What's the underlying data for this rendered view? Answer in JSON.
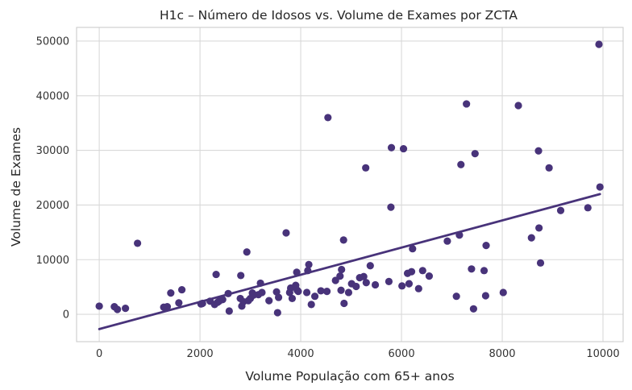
{
  "chart_data": {
    "type": "scatter",
    "title": "H1c – Número de Idosos vs. Volume de Exames por ZCTA",
    "xlabel": "Volume População com 65+ anos",
    "ylabel": "Volume de Exames",
    "xlim": [
      -450,
      10400
    ],
    "ylim": [
      -5000,
      52500
    ],
    "xticks": [
      0,
      2000,
      4000,
      6000,
      8000,
      10000
    ],
    "yticks": [
      0,
      10000,
      20000,
      30000,
      40000,
      50000
    ],
    "xtick_labels": [
      "0",
      "2000",
      "4000",
      "6000",
      "8000",
      "10000"
    ],
    "ytick_labels": [
      "0",
      "10000",
      "20000",
      "30000",
      "40000",
      "50000"
    ],
    "grid": true,
    "colors": {
      "points": "#48337a",
      "line": "#48337a",
      "grid": "#d9d9d9",
      "frame": "#cccccc"
    },
    "trendline": {
      "x": [
        0,
        9940
      ],
      "y": [
        -2700,
        22000
      ]
    },
    "points": [
      [
        0,
        1500
      ],
      [
        300,
        1400
      ],
      [
        360,
        900
      ],
      [
        520,
        1100
      ],
      [
        760,
        13000
      ],
      [
        1280,
        1300
      ],
      [
        1350,
        1400
      ],
      [
        1420,
        3900
      ],
      [
        1580,
        2100
      ],
      [
        1640,
        4500
      ],
      [
        2020,
        1900
      ],
      [
        2050,
        2000
      ],
      [
        2200,
        2400
      ],
      [
        2290,
        1800
      ],
      [
        2320,
        7300
      ],
      [
        2350,
        2200
      ],
      [
        2380,
        2400
      ],
      [
        2450,
        2700
      ],
      [
        2560,
        3800
      ],
      [
        2580,
        600
      ],
      [
        2800,
        2900
      ],
      [
        2810,
        7100
      ],
      [
        2830,
        1500
      ],
      [
        2860,
        2300
      ],
      [
        2930,
        11400
      ],
      [
        2960,
        2500
      ],
      [
        3000,
        2900
      ],
      [
        3040,
        3900
      ],
      [
        3060,
        3500
      ],
      [
        3160,
        3600
      ],
      [
        3200,
        5700
      ],
      [
        3230,
        4000
      ],
      [
        3370,
        2500
      ],
      [
        3520,
        4100
      ],
      [
        3540,
        300
      ],
      [
        3560,
        3100
      ],
      [
        3710,
        14900
      ],
      [
        3780,
        4000
      ],
      [
        3800,
        4800
      ],
      [
        3830,
        2900
      ],
      [
        3900,
        5300
      ],
      [
        3920,
        7700
      ],
      [
        3930,
        4400
      ],
      [
        3950,
        4200
      ],
      [
        4120,
        4000
      ],
      [
        4140,
        8000
      ],
      [
        4160,
        9100
      ],
      [
        4210,
        1800
      ],
      [
        4280,
        3300
      ],
      [
        4400,
        4300
      ],
      [
        4520,
        4200
      ],
      [
        4540,
        36000
      ],
      [
        4690,
        6200
      ],
      [
        4780,
        7000
      ],
      [
        4800,
        4400
      ],
      [
        4810,
        8200
      ],
      [
        4850,
        13600
      ],
      [
        4860,
        2000
      ],
      [
        4950,
        4000
      ],
      [
        5010,
        5600
      ],
      [
        5100,
        5100
      ],
      [
        5170,
        6700
      ],
      [
        5250,
        6900
      ],
      [
        5290,
        26800
      ],
      [
        5300,
        5800
      ],
      [
        5380,
        8900
      ],
      [
        5480,
        5400
      ],
      [
        5750,
        6000
      ],
      [
        5790,
        19600
      ],
      [
        5800,
        30500
      ],
      [
        6010,
        5200
      ],
      [
        6040,
        30300
      ],
      [
        6120,
        7500
      ],
      [
        6150,
        5600
      ],
      [
        6200,
        7800
      ],
      [
        6220,
        12000
      ],
      [
        6340,
        4700
      ],
      [
        6420,
        8000
      ],
      [
        6550,
        7000
      ],
      [
        6910,
        13400
      ],
      [
        7090,
        3300
      ],
      [
        7150,
        14500
      ],
      [
        7180,
        27400
      ],
      [
        7290,
        38500
      ],
      [
        7390,
        8300
      ],
      [
        7430,
        1000
      ],
      [
        7460,
        29400
      ],
      [
        7640,
        8000
      ],
      [
        7670,
        3400
      ],
      [
        7680,
        12600
      ],
      [
        8020,
        4000
      ],
      [
        8320,
        38200
      ],
      [
        8580,
        14000
      ],
      [
        8720,
        29900
      ],
      [
        8730,
        15800
      ],
      [
        8760,
        9400
      ],
      [
        8930,
        26800
      ],
      [
        9160,
        19000
      ],
      [
        9700,
        19500
      ],
      [
        9920,
        49400
      ],
      [
        9940,
        23300
      ]
    ]
  }
}
